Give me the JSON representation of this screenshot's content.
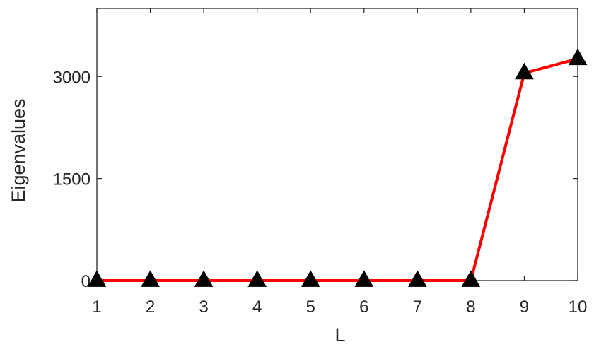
{
  "chart_data": {
    "type": "line",
    "title": "",
    "xlabel": "L",
    "ylabel": "Eigenvalues",
    "x": [
      1,
      2,
      3,
      4,
      5,
      6,
      7,
      8,
      9,
      10
    ],
    "series": [
      {
        "values": [
          0,
          0,
          0,
          0,
          0,
          0,
          0,
          0,
          3050,
          3260
        ],
        "color": "#ff0000",
        "marker": "triangle-up",
        "marker_color": "#000000"
      }
    ],
    "xlim": [
      1,
      10
    ],
    "ylim": [
      0,
      4000
    ],
    "xticks": [
      1,
      2,
      3,
      4,
      5,
      6,
      7,
      8,
      9,
      10
    ],
    "xtick_labels": [
      "1",
      "2",
      "3",
      "4",
      "5",
      "6",
      "7",
      "8",
      "9",
      "10"
    ],
    "yticks": [
      0,
      1500,
      3000
    ],
    "ytick_labels": [
      "0",
      "1500",
      "3000"
    ],
    "grid": false,
    "legend": "none"
  }
}
